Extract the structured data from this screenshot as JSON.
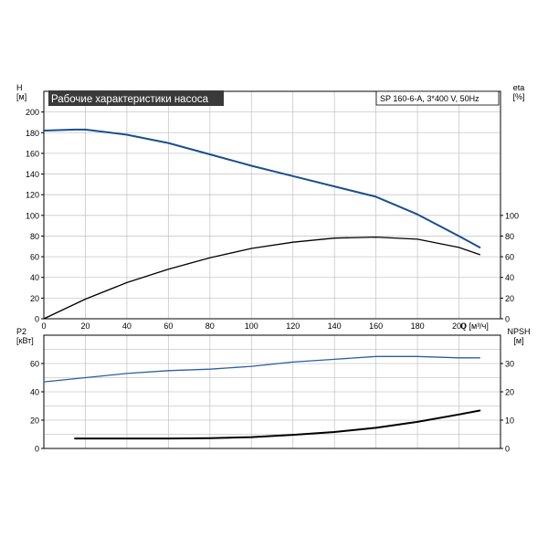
{
  "colors": {
    "grid": "#c8c8c8",
    "axis": "#000000",
    "head_curve": "#1a4f8f",
    "eta_curve": "#000000",
    "power_curve": "#2a5f9f",
    "npsh_curve": "#000000",
    "title_bg": "#3a3a3a",
    "title_text": "#ffffff"
  },
  "chart_data": [
    {
      "type": "line",
      "title": "Рабочие характеристики насоса",
      "subtitle": "SP 160-6-A, 3*400 V, 50Hz",
      "x_label": "Q [м³/ч]",
      "x_range": [
        0,
        220
      ],
      "x_ticks": [
        "0",
        "20",
        "40",
        "60",
        "80",
        "100",
        "120",
        "140",
        "160",
        "180",
        "200"
      ],
      "y_left_label": [
        "H",
        "[м]"
      ],
      "y_left_range": [
        0,
        220
      ],
      "y_left_ticks": [
        "0",
        "20",
        "40",
        "60",
        "80",
        "100",
        "120",
        "140",
        "160",
        "180",
        "200"
      ],
      "y_right_label": [
        "eta",
        "[%]"
      ],
      "y_right_range": [
        0,
        220
      ],
      "y_right_ticks": [
        "0",
        "20",
        "40",
        "60",
        "80",
        "100"
      ],
      "grid": true,
      "series": [
        {
          "key": "head",
          "axis": "left",
          "points": [
            [
              0,
              182
            ],
            [
              15,
              183
            ],
            [
              20,
              183
            ],
            [
              40,
              178
            ],
            [
              60,
              170
            ],
            [
              80,
              159
            ],
            [
              100,
              148
            ],
            [
              120,
              138
            ],
            [
              140,
              128
            ],
            [
              160,
              118
            ],
            [
              180,
              101
            ],
            [
              200,
              80
            ],
            [
              210,
              69
            ]
          ]
        },
        {
          "key": "eta",
          "axis": "right",
          "points": [
            [
              0,
              0
            ],
            [
              20,
              19
            ],
            [
              40,
              35
            ],
            [
              60,
              48
            ],
            [
              80,
              59
            ],
            [
              100,
              68
            ],
            [
              120,
              74
            ],
            [
              140,
              78
            ],
            [
              160,
              79
            ],
            [
              180,
              77
            ],
            [
              200,
              69
            ],
            [
              210,
              62
            ]
          ]
        }
      ]
    },
    {
      "type": "line",
      "x_range": [
        0,
        220
      ],
      "x_ticks": [
        "0",
        "20",
        "40",
        "60",
        "80",
        "100",
        "120",
        "140",
        "160",
        "180",
        "200"
      ],
      "y_left_label": [
        "P2",
        "[кВт]"
      ],
      "y_left_range": [
        0,
        80
      ],
      "y_left_ticks": [
        "0",
        "20",
        "40",
        "60"
      ],
      "y_right_label": [
        "NPSH",
        "[м]"
      ],
      "y_right_range": [
        0,
        40
      ],
      "y_right_ticks": [
        "0",
        "10",
        "20",
        "30"
      ],
      "grid": true,
      "series": [
        {
          "key": "p2",
          "axis": "left",
          "points": [
            [
              0,
              47
            ],
            [
              20,
              50
            ],
            [
              40,
              53
            ],
            [
              60,
              55
            ],
            [
              80,
              56
            ],
            [
              100,
              58
            ],
            [
              120,
              61
            ],
            [
              140,
              63
            ],
            [
              160,
              65
            ],
            [
              180,
              65
            ],
            [
              200,
              64
            ],
            [
              210,
              64
            ]
          ]
        },
        {
          "key": "npsh",
          "axis": "right",
          "points": [
            [
              15,
              3.5
            ],
            [
              40,
              3.5
            ],
            [
              60,
              3.5
            ],
            [
              80,
              3.6
            ],
            [
              100,
              4.0
            ],
            [
              120,
              4.8
            ],
            [
              140,
              5.8
            ],
            [
              160,
              7.3
            ],
            [
              180,
              9.4
            ],
            [
              200,
              12.0
            ],
            [
              210,
              13.4
            ]
          ]
        }
      ]
    }
  ]
}
